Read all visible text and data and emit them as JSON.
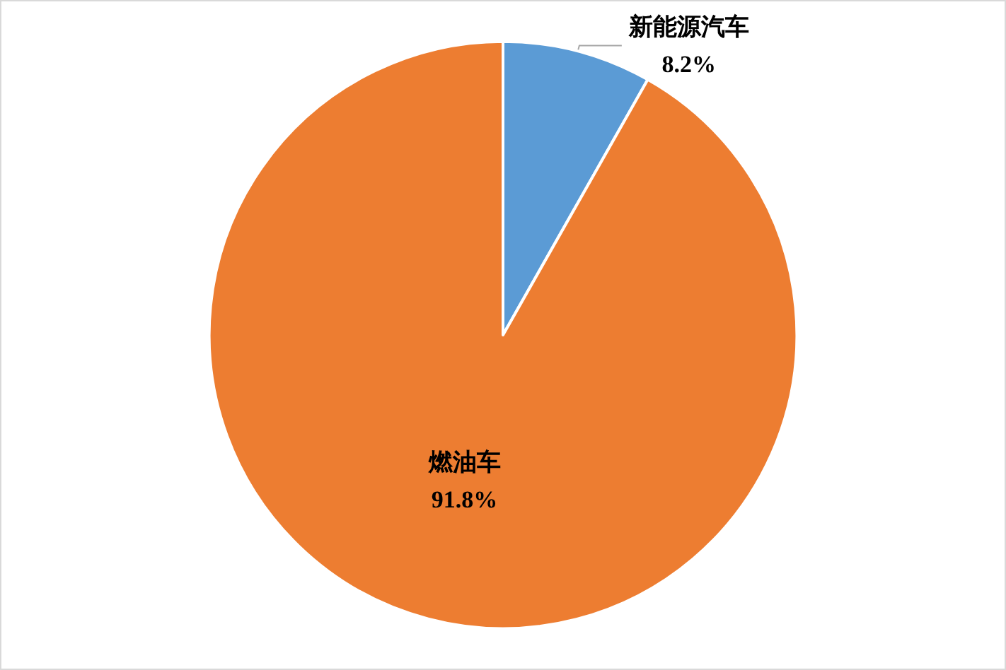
{
  "chart_data": {
    "type": "pie",
    "categories": [
      "新能源汽车",
      "燃油车"
    ],
    "values": [
      8.2,
      91.8
    ],
    "value_labels": [
      "8.2%",
      "91.8%"
    ],
    "colors": [
      "#5b9bd5",
      "#ed7d31"
    ],
    "data_labels": true,
    "legend": false
  }
}
